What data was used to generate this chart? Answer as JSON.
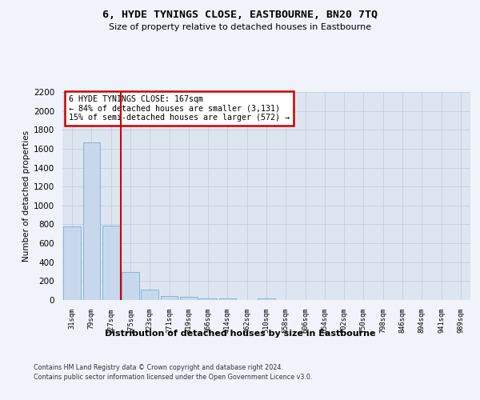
{
  "title": "6, HYDE TYNINGS CLOSE, EASTBOURNE, BN20 7TQ",
  "subtitle": "Size of property relative to detached houses in Eastbourne",
  "xlabel": "Distribution of detached houses by size in Eastbourne",
  "ylabel": "Number of detached properties",
  "bar_labels": [
    "31sqm",
    "79sqm",
    "127sqm",
    "175sqm",
    "223sqm",
    "271sqm",
    "319sqm",
    "366sqm",
    "414sqm",
    "462sqm",
    "510sqm",
    "558sqm",
    "606sqm",
    "654sqm",
    "702sqm",
    "750sqm",
    "798sqm",
    "846sqm",
    "894sqm",
    "941sqm",
    "989sqm"
  ],
  "bar_values": [
    780,
    1670,
    790,
    300,
    110,
    40,
    30,
    20,
    20,
    0,
    20,
    0,
    0,
    0,
    0,
    0,
    0,
    0,
    0,
    0,
    0
  ],
  "bar_color": "#c8d8ec",
  "bar_edge_color": "#7aaed6",
  "grid_color": "#c8d0e0",
  "red_line_x": 2.5,
  "annotation_text": "6 HYDE TYNINGS CLOSE: 167sqm\n← 84% of detached houses are smaller (3,131)\n15% of semi-detached houses are larger (572) →",
  "annotation_box_color": "#ffffff",
  "annotation_border_color": "#cc0000",
  "ylim": [
    0,
    2200
  ],
  "yticks": [
    0,
    200,
    400,
    600,
    800,
    1000,
    1200,
    1400,
    1600,
    1800,
    2000,
    2200
  ],
  "footer_line1": "Contains HM Land Registry data © Crown copyright and database right 2024.",
  "footer_line2": "Contains public sector information licensed under the Open Government Licence v3.0.",
  "background_color": "#f0f4fa",
  "plot_bg_color": "#dde6f0"
}
